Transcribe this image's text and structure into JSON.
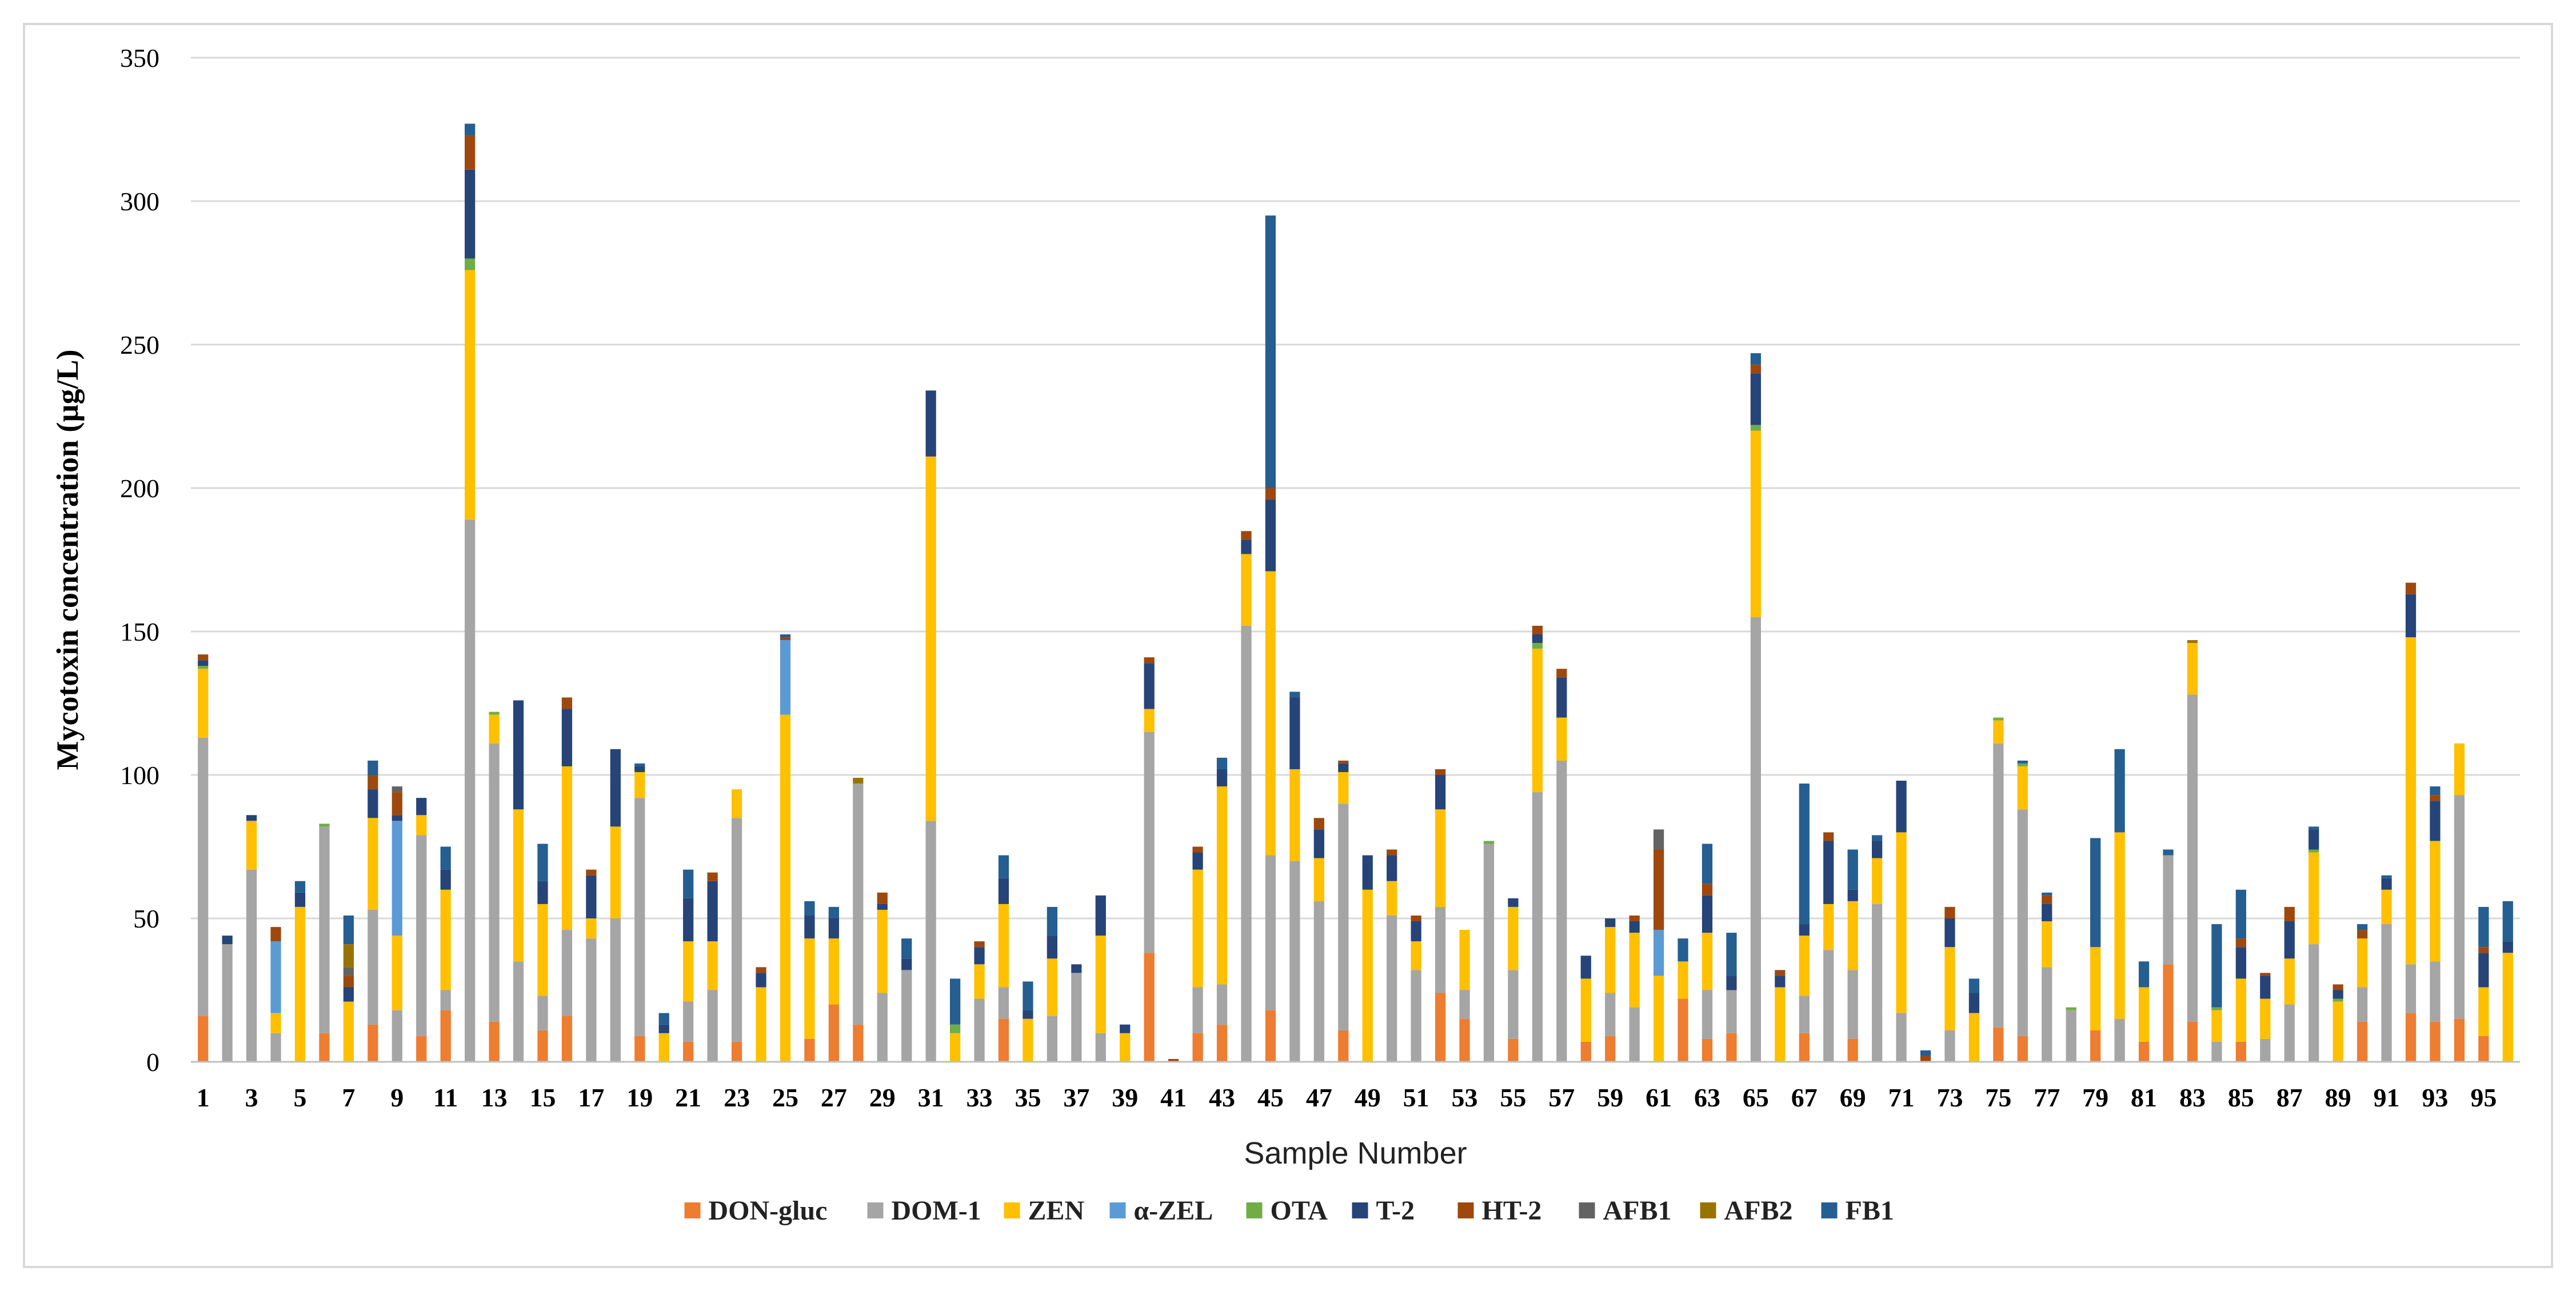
{
  "chart_data": {
    "type": "bar",
    "stacked": true,
    "title": "",
    "xlabel": "Sample Number",
    "ylabel": "Mycotoxin concentration (µg/L)",
    "ylim": [
      0,
      350
    ],
    "yticks": [
      0,
      50,
      100,
      150,
      200,
      250,
      300,
      350
    ],
    "grid": true,
    "legend_position": "bottom",
    "x_tick_labels": [
      "1",
      "3",
      "5",
      "7",
      "9",
      "11",
      "13",
      "15",
      "17",
      "19",
      "21",
      "23",
      "25",
      "27",
      "29",
      "31",
      "33",
      "35",
      "37",
      "39",
      "41",
      "43",
      "45",
      "47",
      "49",
      "51",
      "53",
      "55",
      "57",
      "59",
      "61",
      "63",
      "65",
      "67",
      "69",
      "71",
      "73",
      "75",
      "77",
      "79",
      "81",
      "83",
      "85",
      "87",
      "89",
      "91",
      "93",
      "95"
    ],
    "categories": [
      1,
      2,
      3,
      4,
      5,
      6,
      7,
      8,
      9,
      10,
      11,
      12,
      13,
      14,
      15,
      16,
      17,
      18,
      19,
      20,
      21,
      22,
      23,
      24,
      25,
      26,
      27,
      28,
      29,
      30,
      31,
      32,
      33,
      34,
      35,
      36,
      37,
      38,
      39,
      40,
      41,
      42,
      43,
      44,
      45,
      46,
      47,
      48,
      49,
      50,
      51,
      52,
      53,
      54,
      55,
      56,
      57,
      58,
      59,
      60,
      61,
      62,
      63,
      64,
      65,
      66,
      67,
      68,
      69,
      70,
      71,
      72,
      73,
      74,
      75,
      76,
      77,
      78,
      79,
      80,
      81,
      82,
      83,
      84,
      85,
      86,
      87,
      88,
      89,
      90,
      91,
      92,
      93,
      94,
      95,
      96
    ],
    "series": [
      {
        "name": "DON-gluc",
        "color": "#ED7D31",
        "values": [
          16,
          0,
          0,
          0,
          0,
          10,
          0,
          13,
          0,
          9,
          18,
          0,
          14,
          0,
          11,
          16,
          0,
          0,
          9,
          0,
          7,
          0,
          7,
          0,
          0,
          8,
          20,
          13,
          0,
          0,
          0,
          0,
          0,
          15,
          0,
          0,
          0,
          0,
          0,
          38,
          0,
          10,
          13,
          0,
          18,
          0,
          0,
          11,
          0,
          0,
          0,
          24,
          15,
          0,
          8,
          0,
          0,
          7,
          9,
          0,
          0,
          22,
          8,
          10,
          0,
          0,
          10,
          0,
          8,
          0,
          0,
          0,
          0,
          0,
          12,
          9,
          0,
          0,
          11,
          0,
          7,
          34,
          14,
          0,
          7,
          0,
          0,
          0,
          0,
          14,
          0,
          17,
          14,
          15,
          9,
          0
        ]
      },
      {
        "name": "DOM-1",
        "color": "#A5A5A5",
        "values": [
          97,
          41,
          67,
          10,
          0,
          72,
          0,
          40,
          18,
          70,
          7,
          189,
          97,
          35,
          12,
          30,
          43,
          50,
          83,
          0,
          14,
          25,
          78,
          0,
          0,
          0,
          0,
          84,
          24,
          32,
          84,
          0,
          22,
          11,
          0,
          16,
          31,
          10,
          0,
          77,
          0,
          16,
          14,
          152,
          54,
          70,
          56,
          79,
          0,
          51,
          32,
          30,
          10,
          76,
          24,
          94,
          105,
          0,
          15,
          19,
          0,
          0,
          17,
          15,
          155,
          0,
          13,
          39,
          24,
          55,
          17,
          0,
          11,
          0,
          99,
          79,
          33,
          18,
          0,
          15,
          0,
          38,
          114,
          7,
          0,
          8,
          20,
          41,
          0,
          12,
          48,
          17,
          21,
          78,
          0,
          0
        ]
      },
      {
        "name": "ZEN",
        "color": "#FFC000",
        "values": [
          24,
          0,
          17,
          7,
          54,
          0,
          21,
          32,
          26,
          7,
          35,
          87,
          10,
          53,
          32,
          57,
          7,
          32,
          9,
          10,
          21,
          17,
          10,
          26,
          121,
          35,
          23,
          0,
          29,
          0,
          127,
          10,
          12,
          29,
          15,
          20,
          0,
          34,
          10,
          8,
          0,
          41,
          69,
          25,
          99,
          32,
          15,
          11,
          60,
          12,
          10,
          34,
          21,
          0,
          22,
          50,
          15,
          22,
          23,
          26,
          30,
          13,
          20,
          0,
          65,
          26,
          21,
          16,
          24,
          16,
          63,
          0,
          29,
          17,
          8,
          15,
          16,
          0,
          29,
          65,
          19,
          0,
          18,
          11,
          22,
          14,
          16,
          32,
          21,
          17,
          12,
          114,
          42,
          18,
          17,
          38
        ]
      },
      {
        "name": "α-ZEL",
        "color": "#5B9BD5",
        "values": [
          0,
          0,
          0,
          25,
          0,
          0,
          0,
          0,
          40,
          0,
          0,
          0,
          0,
          0,
          0,
          0,
          0,
          0,
          0,
          0,
          0,
          0,
          0,
          0,
          26,
          0,
          0,
          0,
          0,
          0,
          0,
          0,
          0,
          0,
          0,
          0,
          0,
          0,
          0,
          0,
          0,
          0,
          0,
          0,
          0,
          0,
          0,
          0,
          0,
          0,
          0,
          0,
          0,
          0,
          0,
          0,
          0,
          0,
          0,
          0,
          16,
          0,
          0,
          0,
          0,
          0,
          0,
          0,
          0,
          0,
          0,
          0,
          0,
          0,
          0,
          0,
          0,
          0,
          0,
          0,
          0,
          0,
          0,
          0,
          0,
          0,
          0,
          0,
          0,
          0,
          0,
          0,
          0,
          0,
          0,
          0
        ]
      },
      {
        "name": "OTA",
        "color": "#70AD47",
        "values": [
          1,
          0,
          0,
          0,
          0,
          1,
          0,
          0,
          0,
          0,
          0,
          4,
          1,
          0,
          0,
          0,
          0,
          0,
          0,
          0,
          0,
          0,
          0,
          0,
          0,
          0,
          0,
          0,
          0,
          0,
          0,
          3,
          0,
          0,
          0,
          0,
          0,
          0,
          0,
          0,
          0,
          0,
          0,
          0,
          0,
          0,
          0,
          0,
          0,
          0,
          0,
          0,
          0,
          1,
          0,
          2,
          0,
          0,
          0,
          0,
          0,
          0,
          0,
          0,
          2,
          0,
          0,
          0,
          0,
          0,
          0,
          0,
          0,
          0,
          1,
          1,
          0,
          1,
          0,
          0,
          0,
          0,
          0,
          1,
          0,
          0,
          0,
          1,
          1,
          0,
          0,
          0,
          0,
          0,
          0,
          0
        ]
      },
      {
        "name": "T-2",
        "color": "#264478",
        "values": [
          2,
          3,
          2,
          0,
          5,
          0,
          5,
          10,
          2,
          6,
          7,
          31,
          0,
          38,
          8,
          20,
          15,
          27,
          2,
          3,
          15,
          21,
          0,
          5,
          0,
          8,
          7,
          0,
          2,
          4,
          23,
          0,
          6,
          9,
          3,
          8,
          3,
          14,
          3,
          16,
          0,
          6,
          6,
          5,
          25,
          25,
          10,
          3,
          12,
          9,
          7,
          12,
          0,
          0,
          3,
          3,
          14,
          8,
          3,
          4,
          0,
          0,
          13,
          5,
          18,
          4,
          4,
          22,
          4,
          6,
          18,
          0,
          10,
          7,
          0,
          0,
          6,
          0,
          0,
          0,
          0,
          0,
          0,
          0,
          11,
          8,
          13,
          7,
          3,
          0,
          4,
          15,
          14,
          0,
          12,
          4
        ]
      },
      {
        "name": "HT-2",
        "color": "#9E480E",
        "values": [
          2,
          0,
          0,
          5,
          0,
          0,
          4,
          5,
          8,
          0,
          0,
          12,
          0,
          0,
          0,
          4,
          2,
          0,
          0,
          0,
          0,
          3,
          0,
          2,
          1,
          0,
          0,
          0,
          4,
          0,
          0,
          0,
          2,
          0,
          0,
          0,
          0,
          0,
          0,
          2,
          1,
          2,
          0,
          3,
          4,
          0,
          4,
          1,
          0,
          2,
          2,
          2,
          0,
          0,
          0,
          3,
          3,
          0,
          0,
          2,
          28,
          0,
          4,
          0,
          3,
          2,
          0,
          3,
          0,
          0,
          0,
          2,
          4,
          0,
          0,
          0,
          3,
          0,
          0,
          0,
          0,
          0,
          0,
          0,
          3,
          1,
          5,
          0,
          2,
          3,
          0,
          4,
          2,
          0,
          2,
          0
        ]
      },
      {
        "name": "AFB1",
        "color": "#636363",
        "values": [
          0,
          0,
          0,
          0,
          0,
          0,
          3,
          0,
          2,
          0,
          0,
          0,
          0,
          0,
          0,
          0,
          0,
          0,
          0,
          0,
          0,
          0,
          0,
          0,
          0,
          0,
          0,
          0,
          0,
          0,
          0,
          0,
          0,
          0,
          0,
          0,
          0,
          0,
          0,
          0,
          0,
          0,
          0,
          0,
          0,
          0,
          0,
          0,
          0,
          0,
          0,
          0,
          0,
          0,
          0,
          0,
          0,
          0,
          0,
          0,
          7,
          0,
          0,
          0,
          0,
          0,
          0,
          0,
          0,
          0,
          0,
          0,
          0,
          0,
          0,
          0,
          0,
          0,
          0,
          0,
          0,
          0,
          0,
          0,
          0,
          0,
          0,
          0,
          0,
          0,
          0,
          0,
          0,
          0,
          0,
          0
        ]
      },
      {
        "name": "AFB2",
        "color": "#997300",
        "values": [
          0,
          0,
          0,
          0,
          0,
          0,
          8,
          0,
          0,
          0,
          0,
          0,
          0,
          0,
          0,
          0,
          0,
          0,
          0,
          0,
          0,
          0,
          0,
          0,
          0,
          0,
          0,
          2,
          0,
          0,
          0,
          0,
          0,
          0,
          0,
          0,
          0,
          0,
          0,
          0,
          0,
          0,
          0,
          0,
          0,
          0,
          0,
          0,
          0,
          0,
          0,
          0,
          0,
          0,
          0,
          0,
          0,
          0,
          0,
          0,
          0,
          0,
          0,
          0,
          0,
          0,
          0,
          0,
          0,
          0,
          0,
          0,
          0,
          0,
          0,
          0,
          0,
          0,
          0,
          0,
          0,
          0,
          1,
          0,
          0,
          0,
          0,
          0,
          0,
          0,
          0,
          0,
          0,
          0,
          0,
          0
        ]
      },
      {
        "name": "FB1",
        "color": "#255E91",
        "values": [
          0,
          0,
          0,
          0,
          4,
          0,
          10,
          5,
          0,
          0,
          8,
          4,
          0,
          0,
          13,
          0,
          0,
          0,
          1,
          4,
          10,
          0,
          0,
          0,
          1,
          5,
          4,
          0,
          0,
          7,
          0,
          16,
          0,
          8,
          10,
          10,
          0,
          0,
          0,
          0,
          0,
          0,
          4,
          0,
          95,
          2,
          0,
          0,
          0,
          0,
          0,
          0,
          0,
          0,
          0,
          0,
          0,
          0,
          0,
          0,
          0,
          8,
          14,
          15,
          4,
          0,
          49,
          0,
          14,
          2,
          0,
          2,
          0,
          5,
          0,
          1,
          1,
          0,
          38,
          29,
          9,
          2,
          0,
          29,
          17,
          0,
          0,
          1,
          0,
          2,
          1,
          0,
          3,
          0,
          14,
          14
        ]
      }
    ]
  }
}
